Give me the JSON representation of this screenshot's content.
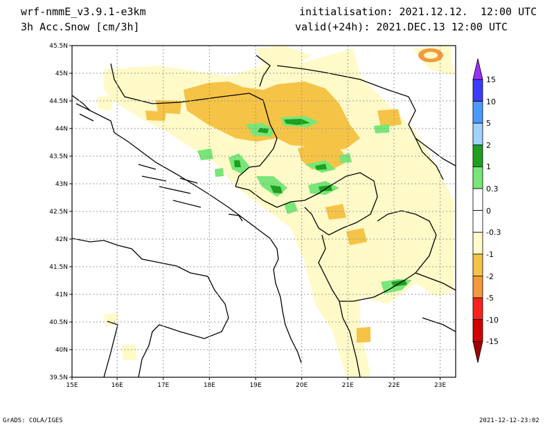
{
  "header": {
    "model": "wrf-nmmE_v3.9.1-e3km",
    "variable": "3h Acc.Snow [cm/3h]",
    "init": "initialisation: 2021.12.12.  12:00 UTC",
    "valid": "valid(+24h): 2021.DEC.13 12:00 UTC"
  },
  "footer": {
    "credit": "GrADS: COLA/IGES",
    "timestamp": "2021-12-12-23:02"
  },
  "map": {
    "lat_ticks": [
      "45.5N",
      "45N",
      "44.5N",
      "44N",
      "43.5N",
      "43N",
      "42.5N",
      "42N",
      "41.5N",
      "41N",
      "40.5N",
      "40N",
      "39.5N"
    ],
    "lon_ticks": [
      "15E",
      "16E",
      "17E",
      "18E",
      "19E",
      "20E",
      "21E",
      "22E",
      "23E"
    ]
  },
  "legend": {
    "labels": [
      "15",
      "10",
      "5",
      "2",
      "1",
      "0.3",
      "0",
      "-0.3",
      "-1",
      "-2",
      "-5",
      "-10",
      "-15"
    ],
    "colors": [
      "#9b30ff",
      "#3c3cff",
      "#4b9bff",
      "#a0d2ff",
      "#1ea01e",
      "#78e678",
      "#ffffff",
      "#fffac8",
      "#f5c346",
      "#f59a3c",
      "#ff2020",
      "#d20000",
      "#a00000",
      "#780000"
    ]
  },
  "colors": {
    "light_yellow": "#fffac8",
    "orange_yellow": "#f5c346",
    "orange": "#f59a3c",
    "light_green": "#78e678",
    "green": "#1ea01e"
  }
}
